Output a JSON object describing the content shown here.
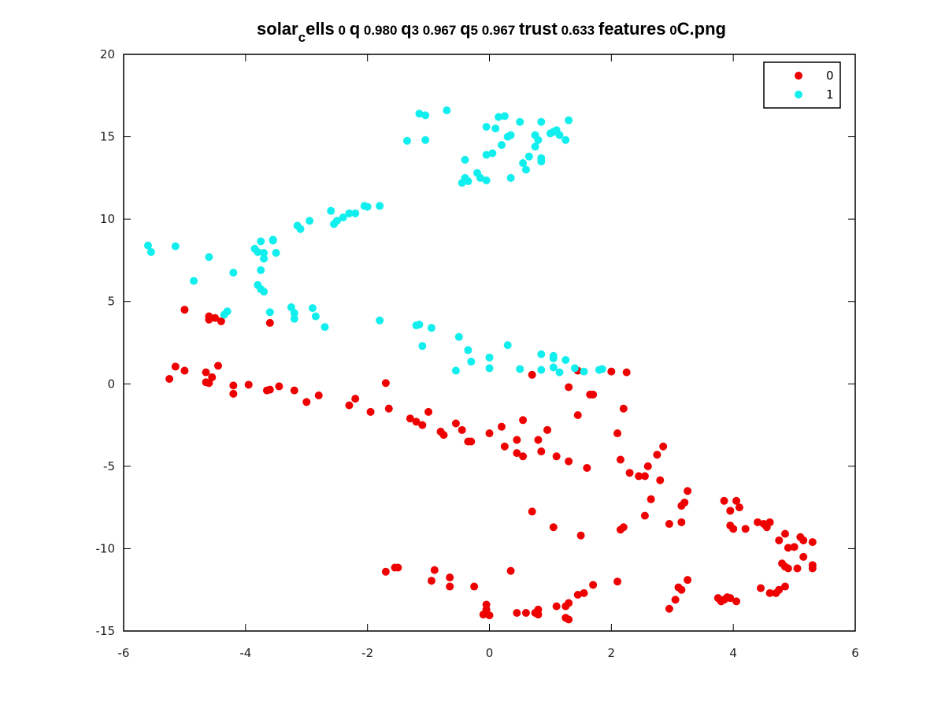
{
  "chart_data": {
    "type": "scatter",
    "title": "solar_cells 0 q 0.980 q3 0.967 q5 0.967 trust 0.633 features 0C.png",
    "title_parts": {
      "a": "solar",
      "sub": "c",
      "b": "ells",
      "s1": " 0 ",
      "q": "q",
      "s2": " 0.980 ",
      "q3": "q",
      "n3": "3",
      "s3": " 0.967 ",
      "q5": "q",
      "n5": "5",
      "s4": " 0.967 ",
      "trust": "trust",
      "s5": " 0.633 ",
      "features": "features",
      "s6": " 0",
      "png": "C.png"
    },
    "xlabel": "",
    "ylabel": "",
    "xlim": [
      -6,
      6
    ],
    "ylim": [
      -15,
      20
    ],
    "xticks": [
      -6,
      -4,
      -2,
      0,
      2,
      4,
      6
    ],
    "yticks": [
      -15,
      -10,
      -5,
      0,
      5,
      10,
      15,
      20
    ],
    "xtick_labels": [
      "-6",
      "-4",
      "-2",
      "0",
      "2",
      "4",
      "6"
    ],
    "ytick_labels": [
      "-15",
      "-10",
      "-5",
      "0",
      "5",
      "10",
      "15",
      "20"
    ],
    "grid": false,
    "legend": {
      "position": "top-right",
      "entries": [
        "0",
        "1"
      ]
    },
    "series": [
      {
        "name": "0",
        "color": "#ee0000",
        "points": [
          [
            -5.0,
            4.5
          ],
          [
            -4.6,
            3.9
          ],
          [
            -4.6,
            4.1
          ],
          [
            -4.5,
            4.0
          ],
          [
            -4.4,
            3.8
          ],
          [
            -3.6,
            3.7
          ],
          [
            -5.15,
            1.05
          ],
          [
            -5.25,
            0.3
          ],
          [
            -5.0,
            0.8
          ],
          [
            -4.65,
            0.1
          ],
          [
            -4.6,
            0.05
          ],
          [
            -4.65,
            0.7
          ],
          [
            -4.55,
            0.4
          ],
          [
            -4.45,
            1.1
          ],
          [
            -4.2,
            -0.1
          ],
          [
            -4.2,
            -0.6
          ],
          [
            -3.95,
            -0.05
          ],
          [
            -3.65,
            -0.4
          ],
          [
            -3.6,
            -0.35
          ],
          [
            -3.45,
            -0.15
          ],
          [
            -3.2,
            -0.4
          ],
          [
            -3.0,
            -1.1
          ],
          [
            -2.8,
            -0.7
          ],
          [
            -2.3,
            -1.3
          ],
          [
            -2.2,
            -0.9
          ],
          [
            -1.95,
            -1.7
          ],
          [
            -1.7,
            0.05
          ],
          [
            -1.65,
            -1.5
          ],
          [
            -1.3,
            -2.1
          ],
          [
            -1.2,
            -2.3
          ],
          [
            -1.1,
            -2.5
          ],
          [
            -1.0,
            -1.7
          ],
          [
            -0.8,
            -2.9
          ],
          [
            -0.75,
            -3.1
          ],
          [
            -0.55,
            -2.4
          ],
          [
            -0.45,
            -2.8
          ],
          [
            -0.35,
            -3.5
          ],
          [
            -0.3,
            -3.5
          ],
          [
            0.0,
            -3.0
          ],
          [
            0.2,
            -2.6
          ],
          [
            0.25,
            -3.8
          ],
          [
            0.45,
            -3.4
          ],
          [
            0.45,
            -4.2
          ],
          [
            0.55,
            -2.2
          ],
          [
            0.55,
            -4.4
          ],
          [
            0.8,
            -3.4
          ],
          [
            0.85,
            -4.1
          ],
          [
            0.95,
            -2.8
          ],
          [
            1.1,
            -4.4
          ],
          [
            1.3,
            -4.7
          ],
          [
            1.6,
            -5.1
          ],
          [
            0.7,
            0.55
          ],
          [
            1.3,
            -0.2
          ],
          [
            1.45,
            0.8
          ],
          [
            1.45,
            -1.9
          ],
          [
            1.65,
            -0.65
          ],
          [
            1.7,
            -0.65
          ],
          [
            2.0,
            0.75
          ],
          [
            2.25,
            0.7
          ],
          [
            2.2,
            -1.5
          ],
          [
            2.1,
            -3.0
          ],
          [
            2.15,
            -4.6
          ],
          [
            2.3,
            -5.4
          ],
          [
            2.45,
            -5.6
          ],
          [
            2.55,
            -5.6
          ],
          [
            2.6,
            -5.0
          ],
          [
            2.75,
            -4.3
          ],
          [
            2.85,
            -3.8
          ],
          [
            2.8,
            -5.85
          ],
          [
            3.25,
            -6.5
          ],
          [
            3.2,
            -7.2
          ],
          [
            3.15,
            -7.4
          ],
          [
            2.65,
            -7.0
          ],
          [
            2.55,
            -8.0
          ],
          [
            2.95,
            -8.5
          ],
          [
            3.15,
            -8.4
          ],
          [
            2.15,
            -8.85
          ],
          [
            2.2,
            -8.7
          ],
          [
            1.05,
            -8.7
          ],
          [
            1.5,
            -9.2
          ],
          [
            0.7,
            -7.75
          ],
          [
            3.85,
            -7.1
          ],
          [
            3.95,
            -7.7
          ],
          [
            4.05,
            -7.1
          ],
          [
            4.1,
            -7.5
          ],
          [
            3.95,
            -8.6
          ],
          [
            4.0,
            -8.8
          ],
          [
            4.2,
            -8.8
          ],
          [
            4.4,
            -8.4
          ],
          [
            4.5,
            -8.5
          ],
          [
            4.6,
            -8.4
          ],
          [
            4.55,
            -8.7
          ],
          [
            4.75,
            -9.5
          ],
          [
            4.85,
            -9.1
          ],
          [
            4.9,
            -9.95
          ],
          [
            5.0,
            -9.9
          ],
          [
            5.1,
            -9.3
          ],
          [
            5.15,
            -9.5
          ],
          [
            5.3,
            -9.6
          ],
          [
            4.8,
            -10.9
          ],
          [
            4.85,
            -11.1
          ],
          [
            5.05,
            -11.2
          ],
          [
            5.15,
            -10.5
          ],
          [
            5.3,
            -11.0
          ],
          [
            5.3,
            -11.2
          ],
          [
            4.45,
            -12.4
          ],
          [
            4.6,
            -12.7
          ],
          [
            4.7,
            -12.7
          ],
          [
            4.75,
            -12.5
          ],
          [
            4.85,
            -12.3
          ],
          [
            4.9,
            -11.2
          ],
          [
            3.75,
            -13.0
          ],
          [
            3.8,
            -13.2
          ],
          [
            3.85,
            -13.1
          ],
          [
            3.9,
            -12.95
          ],
          [
            3.95,
            -13.0
          ],
          [
            4.05,
            -13.2
          ],
          [
            3.25,
            -11.9
          ],
          [
            3.1,
            -12.35
          ],
          [
            3.15,
            -12.5
          ],
          [
            3.05,
            -13.1
          ],
          [
            2.95,
            -13.65
          ],
          [
            2.1,
            -12.0
          ],
          [
            1.7,
            -12.2
          ],
          [
            1.55,
            -12.7
          ],
          [
            1.45,
            -12.8
          ],
          [
            1.1,
            -13.5
          ],
          [
            1.25,
            -13.5
          ],
          [
            1.3,
            -13.3
          ],
          [
            1.25,
            -14.2
          ],
          [
            1.3,
            -14.3
          ],
          [
            0.8,
            -13.7
          ],
          [
            0.75,
            -13.9
          ],
          [
            0.8,
            -14.0
          ],
          [
            0.6,
            -13.9
          ],
          [
            0.45,
            -13.9
          ],
          [
            -0.05,
            -13.4
          ],
          [
            -0.05,
            -13.7
          ],
          [
            -0.05,
            -13.95
          ],
          [
            -0.1,
            -14.0
          ],
          [
            0.0,
            -14.05
          ],
          [
            -0.25,
            -12.3
          ],
          [
            -0.65,
            -11.75
          ],
          [
            -0.65,
            -12.3
          ],
          [
            -0.9,
            -11.3
          ],
          [
            -0.95,
            -11.95
          ],
          [
            0.35,
            -11.35
          ],
          [
            -1.5,
            -11.15
          ],
          [
            -1.55,
            -11.15
          ],
          [
            -1.7,
            -11.4
          ]
        ]
      },
      {
        "name": "1",
        "color": "#11eeee",
        "points": [
          [
            -5.6,
            8.4
          ],
          [
            -5.55,
            8.0
          ],
          [
            -5.15,
            8.35
          ],
          [
            -4.6,
            7.7
          ],
          [
            -4.85,
            6.25
          ],
          [
            -4.2,
            6.75
          ],
          [
            -4.35,
            4.2
          ],
          [
            -4.3,
            4.4
          ],
          [
            -3.85,
            8.2
          ],
          [
            -3.75,
            8.65
          ],
          [
            -3.8,
            8.0
          ],
          [
            -3.7,
            7.6
          ],
          [
            -3.7,
            7.95
          ],
          [
            -3.75,
            6.9
          ],
          [
            -3.8,
            6.0
          ],
          [
            -3.75,
            5.75
          ],
          [
            -3.7,
            5.6
          ],
          [
            -3.6,
            4.35
          ],
          [
            -3.55,
            8.7
          ],
          [
            -3.55,
            8.75
          ],
          [
            -3.5,
            7.95
          ],
          [
            -3.25,
            4.65
          ],
          [
            -3.2,
            4.3
          ],
          [
            -3.2,
            3.95
          ],
          [
            -3.15,
            9.6
          ],
          [
            -3.1,
            9.4
          ],
          [
            -2.95,
            9.9
          ],
          [
            -2.9,
            4.6
          ],
          [
            -2.85,
            4.1
          ],
          [
            -2.7,
            3.45
          ],
          [
            -2.6,
            10.5
          ],
          [
            -2.55,
            9.7
          ],
          [
            -2.5,
            9.9
          ],
          [
            -2.4,
            10.1
          ],
          [
            -2.3,
            10.35
          ],
          [
            -2.2,
            10.35
          ],
          [
            -2.05,
            10.8
          ],
          [
            -2.0,
            10.75
          ],
          [
            -1.8,
            10.8
          ],
          [
            -1.8,
            3.85
          ],
          [
            -1.35,
            14.75
          ],
          [
            -1.15,
            16.4
          ],
          [
            -1.05,
            16.3
          ],
          [
            -1.05,
            14.8
          ],
          [
            -0.7,
            16.6
          ],
          [
            -0.45,
            12.2
          ],
          [
            -0.4,
            12.5
          ],
          [
            -0.4,
            13.6
          ],
          [
            -0.35,
            12.3
          ],
          [
            -0.2,
            12.8
          ],
          [
            -0.15,
            12.5
          ],
          [
            -0.05,
            12.35
          ],
          [
            -0.05,
            13.9
          ],
          [
            -0.05,
            15.6
          ],
          [
            0.05,
            14.0
          ],
          [
            0.1,
            15.5
          ],
          [
            0.15,
            16.2
          ],
          [
            0.2,
            14.5
          ],
          [
            0.25,
            16.25
          ],
          [
            0.3,
            15.0
          ],
          [
            0.35,
            15.1
          ],
          [
            0.35,
            12.5
          ],
          [
            0.5,
            15.9
          ],
          [
            0.55,
            13.4
          ],
          [
            0.6,
            13.0
          ],
          [
            0.65,
            13.8
          ],
          [
            0.75,
            15.1
          ],
          [
            0.75,
            14.4
          ],
          [
            0.8,
            14.8
          ],
          [
            0.85,
            15.9
          ],
          [
            0.85,
            13.5
          ],
          [
            0.85,
            13.7
          ],
          [
            1.0,
            15.2
          ],
          [
            1.05,
            15.3
          ],
          [
            1.1,
            15.4
          ],
          [
            1.15,
            15.1
          ],
          [
            1.25,
            14.8
          ],
          [
            1.3,
            16.0
          ],
          [
            -1.2,
            3.55
          ],
          [
            -1.15,
            3.6
          ],
          [
            -1.1,
            2.3
          ],
          [
            -0.95,
            3.4
          ],
          [
            -0.55,
            0.8
          ],
          [
            -0.5,
            2.85
          ],
          [
            -0.35,
            2.05
          ],
          [
            -0.3,
            1.35
          ],
          [
            0.0,
            0.95
          ],
          [
            0.0,
            1.6
          ],
          [
            0.3,
            2.35
          ],
          [
            0.5,
            0.9
          ],
          [
            0.85,
            0.85
          ],
          [
            0.85,
            1.8
          ],
          [
            1.05,
            1.55
          ],
          [
            1.05,
            1.7
          ],
          [
            1.05,
            1.0
          ],
          [
            1.15,
            0.7
          ],
          [
            1.25,
            1.45
          ],
          [
            1.4,
            0.95
          ],
          [
            1.55,
            0.75
          ],
          [
            1.8,
            0.85
          ],
          [
            1.85,
            0.9
          ]
        ]
      }
    ]
  }
}
